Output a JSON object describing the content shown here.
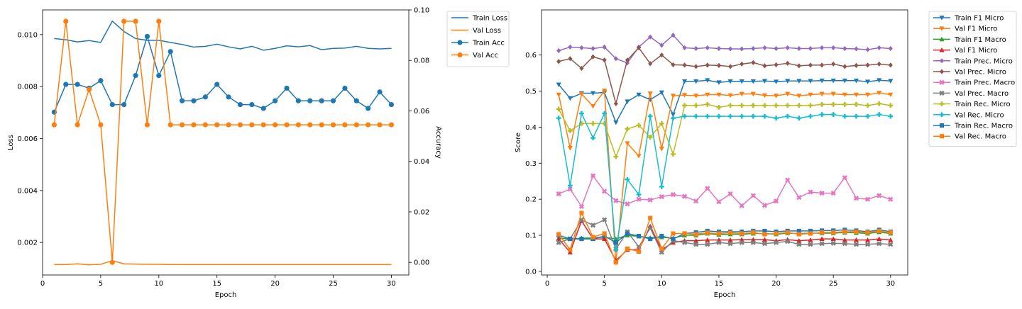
{
  "chart_data": [
    {
      "type": "line",
      "xlabel": "Epoch",
      "ylabel": "Loss",
      "ylabel_right": "Accuracy",
      "xlim": [
        0,
        31.5
      ],
      "ylim": [
        0.00075,
        0.01095
      ],
      "ylim_right": [
        -0.005,
        0.1
      ],
      "x_ticks": [
        0,
        5,
        10,
        15,
        20,
        25,
        30
      ],
      "y_ticks": [
        0.002,
        0.004,
        0.006,
        0.008,
        0.01
      ],
      "y_tick_labels": [
        "0.002",
        "0.004",
        "0.006",
        "0.008",
        "0.010"
      ],
      "y_ticks_right": [
        0.0,
        0.02,
        0.04,
        0.06,
        0.08,
        0.1
      ],
      "y_tick_labels_right": [
        "0.00",
        "0.02",
        "0.04",
        "0.06",
        "0.08",
        "0.10"
      ],
      "grid": false,
      "legend_position": "outside-top-right",
      "x": [
        1,
        2,
        3,
        4,
        5,
        6,
        7,
        8,
        9,
        10,
        11,
        12,
        13,
        14,
        15,
        16,
        17,
        18,
        19,
        20,
        21,
        22,
        23,
        24,
        25,
        26,
        27,
        28,
        29,
        30
      ],
      "series": [
        {
          "name": "Train Loss",
          "axis": "left",
          "color": "#1f77b4",
          "marker": "none",
          "values": [
            0.00985,
            0.0098,
            0.00972,
            0.00977,
            0.0097,
            0.01052,
            0.01012,
            0.00985,
            0.00978,
            0.00978,
            0.0097,
            0.00962,
            0.00952,
            0.00955,
            0.00963,
            0.00953,
            0.00945,
            0.00955,
            0.0094,
            0.00947,
            0.00957,
            0.00953,
            0.00958,
            0.00942,
            0.00947,
            0.00948,
            0.00955,
            0.00947,
            0.00945,
            0.00947
          ]
        },
        {
          "name": "Val Loss",
          "axis": "left",
          "color": "#ff7f0e",
          "marker": "none",
          "values": [
            0.00115,
            0.00115,
            0.00118,
            0.00114,
            0.00116,
            0.0013,
            0.00118,
            0.00117,
            0.00116,
            0.00116,
            0.00115,
            0.00115,
            0.00115,
            0.00115,
            0.00115,
            0.00115,
            0.00115,
            0.00115,
            0.00115,
            0.00115,
            0.00115,
            0.00115,
            0.00115,
            0.00115,
            0.00115,
            0.00115,
            0.00115,
            0.00115,
            0.00115,
            0.00115
          ]
        },
        {
          "name": "Train Acc",
          "axis": "right",
          "color": "#1f77b4",
          "marker": "circle",
          "values": [
            0.0595,
            0.0705,
            0.0705,
            0.069,
            0.072,
            0.0625,
            0.0625,
            0.074,
            0.0895,
            0.074,
            0.0835,
            0.064,
            0.064,
            0.0655,
            0.0705,
            0.0655,
            0.0625,
            0.0625,
            0.061,
            0.064,
            0.069,
            0.064,
            0.064,
            0.064,
            0.064,
            0.069,
            0.064,
            0.061,
            0.0675,
            0.0625
          ]
        },
        {
          "name": "Val Acc",
          "axis": "right",
          "color": "#ff7f0e",
          "marker": "circle",
          "values": [
            0.0545,
            0.0955,
            0.0545,
            0.0685,
            0.0545,
            0.0,
            0.0955,
            0.0955,
            0.0545,
            0.0955,
            0.0545,
            0.0545,
            0.0545,
            0.0545,
            0.0545,
            0.0545,
            0.0545,
            0.0545,
            0.0545,
            0.0545,
            0.0545,
            0.0545,
            0.0545,
            0.0545,
            0.0545,
            0.0545,
            0.0545,
            0.0545,
            0.0545,
            0.0545
          ]
        }
      ]
    },
    {
      "type": "line",
      "xlabel": "Epoch",
      "ylabel": "Score",
      "xlim": [
        -0.5,
        31.5
      ],
      "ylim": [
        -0.01,
        0.725
      ],
      "x_ticks": [
        0,
        5,
        10,
        15,
        20,
        25,
        30
      ],
      "y_ticks": [
        0.0,
        0.1,
        0.2,
        0.3,
        0.4,
        0.5,
        0.6
      ],
      "y_tick_labels": [
        "0.0",
        "0.1",
        "0.2",
        "0.3",
        "0.4",
        "0.5",
        "0.6"
      ],
      "grid": false,
      "legend_position": "outside-top-right",
      "x": [
        1,
        2,
        3,
        4,
        5,
        6,
        7,
        8,
        9,
        10,
        11,
        12,
        13,
        14,
        15,
        16,
        17,
        18,
        19,
        20,
        21,
        22,
        23,
        24,
        25,
        26,
        27,
        28,
        29,
        30
      ],
      "series": [
        {
          "name": "Train F1 Micro",
          "color": "#1f77b4",
          "marker": "triangle-down",
          "values": [
            0.518,
            0.48,
            0.494,
            0.494,
            0.496,
            0.413,
            0.471,
            0.49,
            0.476,
            0.496,
            0.435,
            0.527,
            0.527,
            0.53,
            0.524,
            0.527,
            0.527,
            0.527,
            0.528,
            0.526,
            0.528,
            0.528,
            0.528,
            0.529,
            0.529,
            0.529,
            0.529,
            0.526,
            0.53,
            0.528
          ]
        },
        {
          "name": "Val F1 Micro",
          "color": "#ff7f0e",
          "marker": "triangle-down",
          "values": [
            0.49,
            0.342,
            0.492,
            0.458,
            0.501,
            0.025,
            0.355,
            0.32,
            0.493,
            0.34,
            0.487,
            0.489,
            0.487,
            0.49,
            0.49,
            0.488,
            0.492,
            0.492,
            0.488,
            0.487,
            0.492,
            0.487,
            0.49,
            0.492,
            0.492,
            0.49,
            0.49,
            0.49,
            0.495,
            0.49
          ]
        },
        {
          "name": "Train F1 Macro",
          "color": "#2ca02c",
          "marker": "triangle-up",
          "values": [
            0.092,
            0.09,
            0.092,
            0.093,
            0.095,
            0.09,
            0.1,
            0.097,
            0.093,
            0.095,
            0.092,
            0.1,
            0.1,
            0.105,
            0.102,
            0.103,
            0.103,
            0.105,
            0.105,
            0.103,
            0.106,
            0.105,
            0.106,
            0.106,
            0.106,
            0.108,
            0.107,
            0.105,
            0.109,
            0.105
          ]
        },
        {
          "name": "Val F1 Micro",
          "color": "#d62728",
          "marker": "triangle-up",
          "values": [
            0.09,
            0.053,
            0.14,
            0.09,
            0.09,
            0.03,
            0.06,
            0.06,
            0.125,
            0.06,
            0.08,
            0.085,
            0.085,
            0.087,
            0.087,
            0.087,
            0.088,
            0.088,
            0.088,
            0.085,
            0.088,
            0.085,
            0.087,
            0.09,
            0.09,
            0.087,
            0.087,
            0.087,
            0.09,
            0.087
          ]
        },
        {
          "name": "Train Prec. Micro",
          "color": "#9467bd",
          "marker": "diamond",
          "values": [
            0.612,
            0.622,
            0.62,
            0.618,
            0.622,
            0.59,
            0.578,
            0.622,
            0.65,
            0.627,
            0.655,
            0.62,
            0.618,
            0.62,
            0.618,
            0.617,
            0.617,
            0.618,
            0.62,
            0.618,
            0.62,
            0.618,
            0.618,
            0.62,
            0.62,
            0.618,
            0.617,
            0.615,
            0.62,
            0.618
          ]
        },
        {
          "name": "Val Prec. Micro",
          "color": "#8c564b",
          "marker": "diamond",
          "values": [
            0.582,
            0.59,
            0.563,
            0.595,
            0.586,
            0.465,
            0.586,
            0.62,
            0.576,
            0.6,
            0.573,
            0.572,
            0.568,
            0.572,
            0.571,
            0.568,
            0.575,
            0.579,
            0.57,
            0.573,
            0.577,
            0.57,
            0.572,
            0.572,
            0.575,
            0.568,
            0.571,
            0.572,
            0.575,
            0.572
          ]
        },
        {
          "name": "Train Prec. Macro",
          "color": "#e377c2",
          "marker": "x",
          "values": [
            0.215,
            0.228,
            0.18,
            0.265,
            0.222,
            0.196,
            0.187,
            0.2,
            0.198,
            0.207,
            0.213,
            0.208,
            0.195,
            0.23,
            0.193,
            0.215,
            0.182,
            0.21,
            0.183,
            0.195,
            0.253,
            0.205,
            0.22,
            0.217,
            0.217,
            0.26,
            0.203,
            0.2,
            0.21,
            0.2
          ]
        },
        {
          "name": "Val Prec. Macro",
          "color": "#7f7f7f",
          "marker": "x",
          "values": [
            0.08,
            0.09,
            0.143,
            0.128,
            0.143,
            0.062,
            0.11,
            0.068,
            0.12,
            0.053,
            0.085,
            0.08,
            0.075,
            0.075,
            0.08,
            0.077,
            0.08,
            0.08,
            0.077,
            0.08,
            0.083,
            0.075,
            0.075,
            0.077,
            0.078,
            0.077,
            0.075,
            0.075,
            0.077,
            0.075
          ]
        },
        {
          "name": "Train Rec. Micro",
          "color": "#bcbd22",
          "marker": "plus",
          "values": [
            0.45,
            0.39,
            0.41,
            0.41,
            0.41,
            0.318,
            0.395,
            0.405,
            0.372,
            0.41,
            0.325,
            0.46,
            0.46,
            0.463,
            0.455,
            0.46,
            0.46,
            0.46,
            0.46,
            0.46,
            0.46,
            0.46,
            0.46,
            0.463,
            0.463,
            0.463,
            0.463,
            0.46,
            0.465,
            0.46
          ]
        },
        {
          "name": "Val Rec. Micro",
          "color": "#17becf",
          "marker": "plus",
          "values": [
            0.425,
            0.238,
            0.438,
            0.37,
            0.438,
            0.06,
            0.255,
            0.213,
            0.43,
            0.235,
            0.425,
            0.43,
            0.43,
            0.43,
            0.43,
            0.43,
            0.43,
            0.43,
            0.43,
            0.425,
            0.43,
            0.425,
            0.43,
            0.435,
            0.435,
            0.43,
            0.43,
            0.43,
            0.435,
            0.43
          ]
        },
        {
          "name": "Train Rec. Macro",
          "color": "#1f77b4",
          "marker": "square",
          "values": [
            0.1,
            0.09,
            0.09,
            0.09,
            0.098,
            0.08,
            0.105,
            0.098,
            0.09,
            0.098,
            0.09,
            0.105,
            0.108,
            0.112,
            0.11,
            0.11,
            0.11,
            0.112,
            0.112,
            0.11,
            0.112,
            0.112,
            0.112,
            0.113,
            0.113,
            0.115,
            0.113,
            0.11,
            0.115,
            0.11
          ]
        },
        {
          "name": "Val Rec. Macro",
          "color": "#ff7f0e",
          "marker": "square",
          "values": [
            0.103,
            0.06,
            0.162,
            0.095,
            0.105,
            0.025,
            0.063,
            0.055,
            0.148,
            0.063,
            0.105,
            0.105,
            0.103,
            0.107,
            0.105,
            0.107,
            0.105,
            0.108,
            0.103,
            0.105,
            0.108,
            0.103,
            0.105,
            0.108,
            0.108,
            0.11,
            0.11,
            0.108,
            0.112,
            0.108
          ]
        }
      ]
    }
  ]
}
